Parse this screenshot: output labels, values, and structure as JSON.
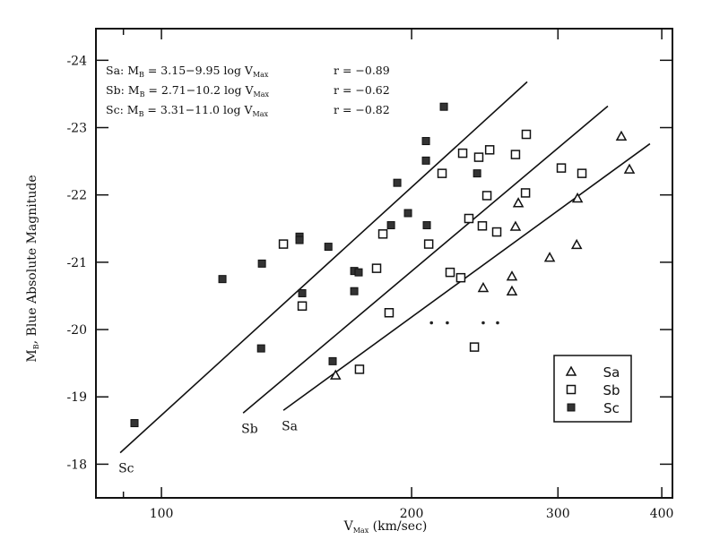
{
  "chart_data": {
    "type": "scatter",
    "title": "",
    "xlabel": {
      "main": "V",
      "sub": "Max",
      "rest": " (km/sec)"
    },
    "ylabel": {
      "main": "M",
      "sub": "B",
      "rest": ", Blue Absolute Magnitude"
    },
    "xscale": "log",
    "xlim": [
      83.4,
      412
    ],
    "ylim": [
      -17.5,
      -24.47
    ],
    "xticks": [
      {
        "value": 90,
        "label": ""
      },
      {
        "value": 100,
        "label": "100"
      },
      {
        "value": 200,
        "label": "200"
      },
      {
        "value": 300,
        "label": "300"
      },
      {
        "value": 400,
        "label": "400"
      }
    ],
    "yticks": [
      -24,
      -23,
      -22,
      -21,
      -20,
      -19,
      -18
    ],
    "ytick_labels": [
      "-24",
      "-23",
      "-22",
      "-21",
      "-20",
      "-19",
      "-18"
    ],
    "grid": false,
    "legend": {
      "position": "bottom-right",
      "entries": [
        {
          "label": "Sa",
          "marker": "open-triangle"
        },
        {
          "label": "Sb",
          "marker": "open-square"
        },
        {
          "label": "Sc",
          "marker": "filled-square"
        }
      ]
    },
    "equations": [
      {
        "prefix": "Sa: M",
        "msub": "B",
        "mid": " = 3.15−9.95 log V",
        "vsub": "Max",
        "r": "r = −0.89"
      },
      {
        "prefix": "Sb: M",
        "msub": "B",
        "mid": " = 2.71−10.2 log V",
        "vsub": "Max",
        "r": "r = −0.62"
      },
      {
        "prefix": "Sc: M",
        "msub": "B",
        "mid": " = 3.31−11.0 log V",
        "vsub": "Max",
        "r": "r = −0.82"
      }
    ],
    "fit_lines": [
      {
        "name": "Sa",
        "label": "Sa",
        "from": [
          140.2,
          -18.8
        ],
        "to": [
          387.1,
          -22.76
        ]
      },
      {
        "name": "Sb",
        "label": "Sb",
        "from": [
          125.4,
          -18.76
        ],
        "to": [
          344.5,
          -23.32
        ]
      },
      {
        "name": "Sc",
        "label": "Sc",
        "from": [
          89.2,
          -18.17
        ],
        "to": [
          275.5,
          -23.68
        ]
      }
    ],
    "series": [
      {
        "name": "Sa",
        "marker": "open-triangle",
        "points": [
          [
            162.0,
            -19.32
          ],
          [
            243.9,
            -20.62
          ],
          [
            264.1,
            -20.79
          ],
          [
            264.1,
            -20.57
          ],
          [
            266.7,
            -21.53
          ],
          [
            268.8,
            -21.88
          ],
          [
            293.2,
            -21.07
          ],
          [
            316.0,
            -21.26
          ],
          [
            316.7,
            -21.95
          ],
          [
            357.6,
            -22.87
          ],
          [
            365.7,
            -22.38
          ]
        ]
      },
      {
        "name": "Sb",
        "marker": "open-square",
        "points": [
          [
            140.2,
            -21.27
          ],
          [
            147.7,
            -20.35
          ],
          [
            230.4,
            -22.62
          ],
          [
            240.9,
            -22.56
          ],
          [
            248.3,
            -22.67
          ],
          [
            266.7,
            -22.6
          ],
          [
            274.8,
            -22.9
          ],
          [
            302.8,
            -22.4
          ],
          [
            320.6,
            -22.32
          ],
          [
            217.6,
            -22.32
          ],
          [
            246.4,
            -21.99
          ],
          [
            274.2,
            -22.03
          ],
          [
            234.4,
            -21.65
          ],
          [
            243.3,
            -21.54
          ],
          [
            253.2,
            -21.45
          ],
          [
            184.7,
            -21.42
          ],
          [
            209.7,
            -21.27
          ],
          [
            181.5,
            -20.91
          ],
          [
            222.5,
            -20.85
          ],
          [
            229.2,
            -20.77
          ],
          [
            187.9,
            -20.25
          ],
          [
            238.0,
            -19.74
          ],
          [
            173.1,
            -19.41
          ]
        ]
      },
      {
        "name": "Sc",
        "marker": "filled-square",
        "points": [
          [
            92.8,
            -18.61
          ],
          [
            118.4,
            -20.75
          ],
          [
            132.1,
            -20.98
          ],
          [
            131.8,
            -19.72
          ],
          [
            146.6,
            -21.38
          ],
          [
            146.6,
            -21.33
          ],
          [
            147.7,
            -20.54
          ],
          [
            158.8,
            -21.23
          ],
          [
            160.7,
            -19.53
          ],
          [
            170.6,
            -20.87
          ],
          [
            172.7,
            -20.85
          ],
          [
            170.6,
            -20.57
          ],
          [
            188.9,
            -21.55
          ],
          [
            192.2,
            -22.18
          ],
          [
            198.0,
            -21.73
          ],
          [
            208.1,
            -22.51
          ],
          [
            208.1,
            -22.8
          ],
          [
            208.6,
            -21.55
          ],
          [
            218.7,
            -23.31
          ],
          [
            239.8,
            -22.32
          ]
        ]
      },
      {
        "name": "unlabeled",
        "marker": "dot",
        "points": [
          [
            211.3,
            -20.1
          ],
          [
            220.8,
            -20.1
          ],
          [
            243.9,
            -20.1
          ],
          [
            253.8,
            -20.1
          ]
        ]
      }
    ]
  }
}
